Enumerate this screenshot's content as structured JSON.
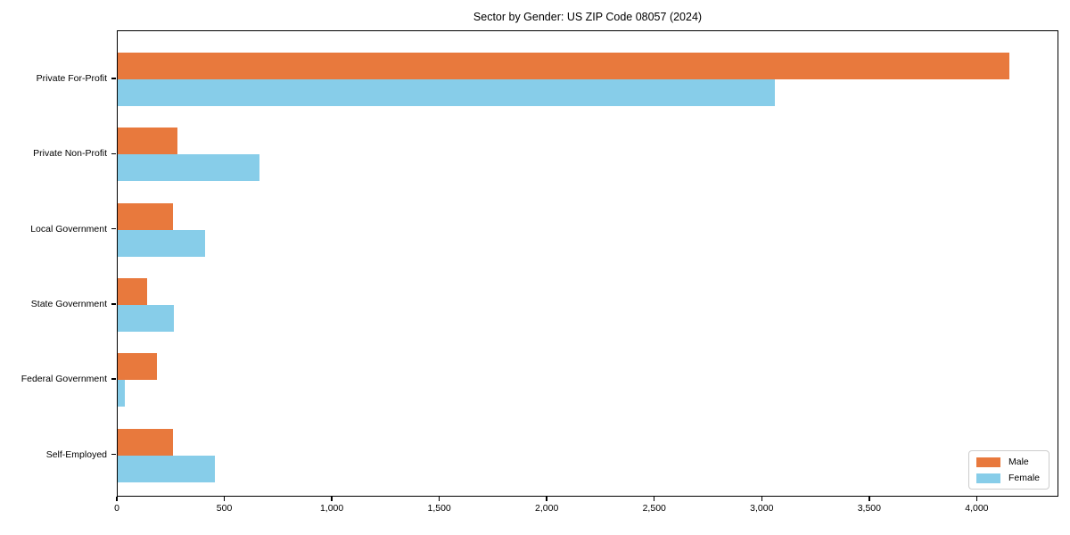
{
  "chart_data": {
    "type": "bar",
    "orientation": "horizontal",
    "title": "Sector by Gender: US ZIP Code 08057 (2024)",
    "categories": [
      "Private For-Profit",
      "Private Non-Profit",
      "Local Government",
      "State Government",
      "Federal Government",
      "Self-Employed"
    ],
    "series": [
      {
        "name": "Male",
        "color": "#E8793D",
        "values": [
          4160,
          278,
          257,
          139,
          181,
          260
        ]
      },
      {
        "name": "Female",
        "color": "#87CDE9",
        "values": [
          3066,
          663,
          406,
          262,
          33,
          453
        ]
      }
    ],
    "xlabel": "",
    "ylabel": "",
    "xlim": [
      0,
      4380
    ],
    "x_ticks": [
      0,
      500,
      1000,
      1500,
      2000,
      2500,
      3000,
      3500,
      4000
    ],
    "x_tick_labels": [
      "0",
      "500",
      "1,000",
      "1,500",
      "2,000",
      "2,500",
      "3,000",
      "3,500",
      "4,000"
    ],
    "grid": false,
    "legend_position": "lower right",
    "plot_border_color": "#000000",
    "background_color": "#ffffff"
  }
}
